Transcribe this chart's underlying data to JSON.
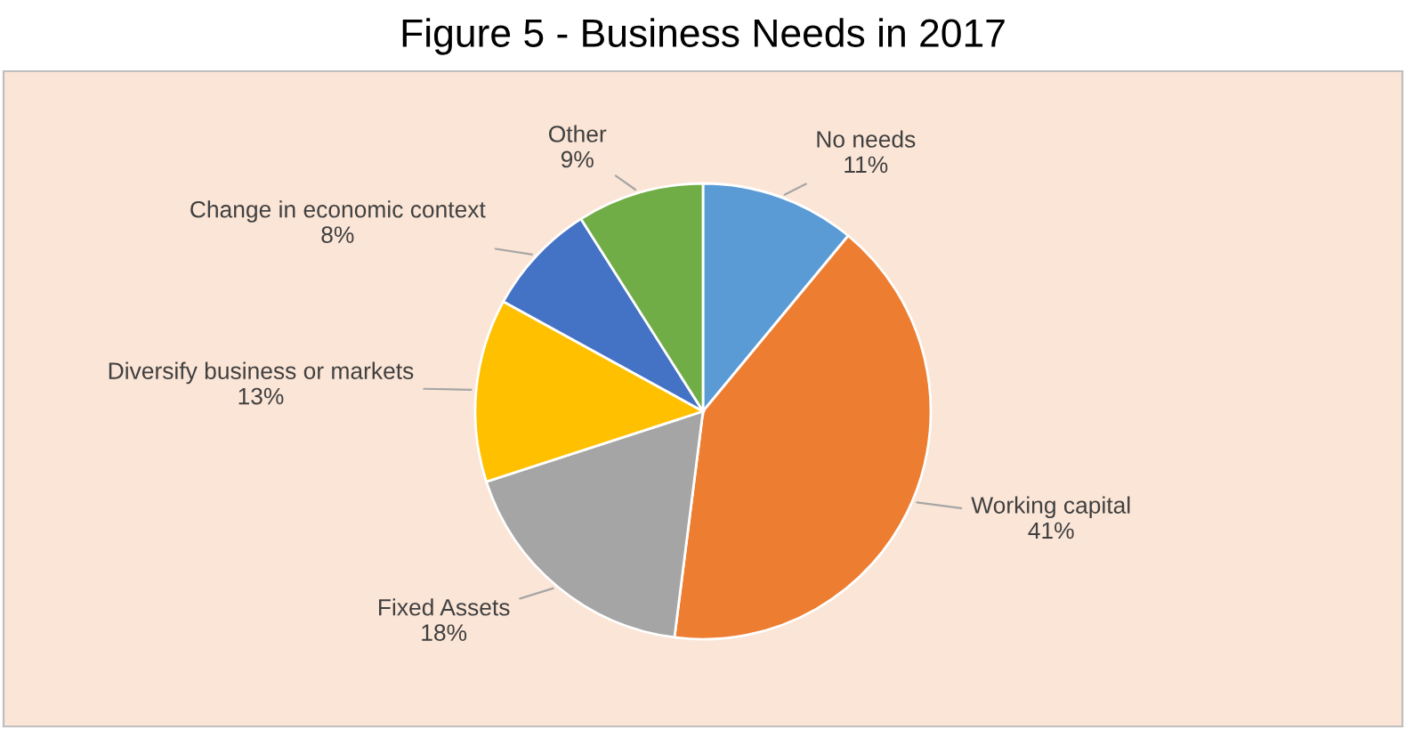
{
  "chart_data": {
    "type": "pie",
    "title": "Figure 5 - Business Needs in 2017",
    "categories": [
      "No needs",
      "Working capital",
      "Fixed Assets",
      "Diversify business or markets",
      "Change in economic context",
      "Other"
    ],
    "values": [
      11,
      41,
      18,
      13,
      8,
      9
    ],
    "value_labels": [
      "11%",
      "41%",
      "18%",
      "13%",
      "8%",
      "9%"
    ],
    "colors": [
      "#5b9bd5",
      "#ed7d31",
      "#a5a5a5",
      "#ffc000",
      "#4472c4",
      "#70ad47"
    ],
    "legend": false
  }
}
